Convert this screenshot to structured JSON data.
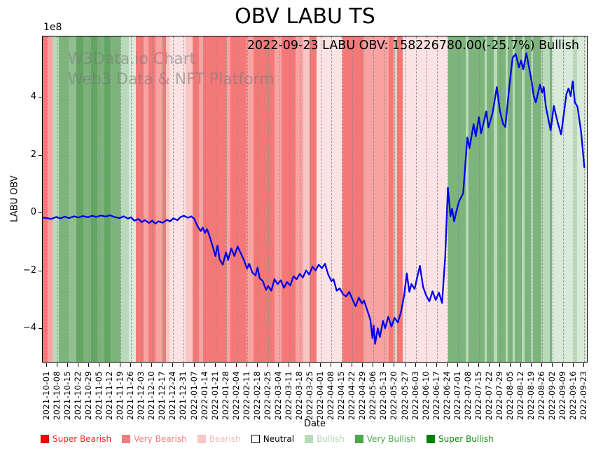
{
  "title": "OBV LABU TS",
  "annotation": "2022-09-23 LABU OBV: 158226780.00(-25.7%) Bullish",
  "watermark": {
    "line1": "W3Data.io Chart",
    "line2": "Web3 Data & NFT Platform"
  },
  "axes": {
    "ylabel": "LABU OBV",
    "xlabel": "Date",
    "offset_text": "1e8"
  },
  "legend": {
    "items": [
      {
        "label": "Super Bearish",
        "swatch": "#ff0000",
        "text_color": "#ff1f1f",
        "border": "#b30000"
      },
      {
        "label": "Very Bearish",
        "swatch": "#f47c7c",
        "text_color": "#f47c7c",
        "border": "#f47c7c"
      },
      {
        "label": "Bearish",
        "swatch": "#fac5c5",
        "text_color": "#f5bcbc",
        "border": "#fac5c5"
      },
      {
        "label": "Neutral",
        "swatch": "#ffffff",
        "text_color": "#000000",
        "border": "#000000"
      },
      {
        "label": "Bullish",
        "swatch": "#b9dab9",
        "text_color": "#b2d6b2",
        "border": "#b9dab9"
      },
      {
        "label": "Very Bullish",
        "swatch": "#4ea64e",
        "text_color": "#4ea64e",
        "border": "#4ea64e"
      },
      {
        "label": "Super Bullish",
        "swatch": "#008000",
        "text_color": "#0e8c0e",
        "border": "#008000"
      }
    ]
  },
  "chart_data": {
    "type": "line",
    "title": "OBV LABU TS",
    "xlabel": "Date",
    "ylabel": "LABU OBV",
    "y_unit": "1e8",
    "ylim": [
      -5.19,
      6.11
    ],
    "yticks": [
      4,
      2,
      0,
      -2,
      -4
    ],
    "ytick_labels": [
      "4",
      "2",
      "0",
      "−2",
      "−4"
    ],
    "grid": "vertical-dotted-weekly",
    "legend_position": "below-figure",
    "x_tick_dates": [
      "2021-10-01",
      "2021-10-08",
      "2021-10-15",
      "2021-10-22",
      "2021-10-29",
      "2021-11-05",
      "2021-11-12",
      "2021-11-19",
      "2021-11-26",
      "2021-12-03",
      "2021-12-10",
      "2021-12-17",
      "2021-12-24",
      "2021-12-31",
      "2022-01-07",
      "2022-01-14",
      "2022-01-21",
      "2022-01-28",
      "2022-02-04",
      "2022-02-11",
      "2022-02-18",
      "2022-02-25",
      "2022-03-04",
      "2022-03-11",
      "2022-03-18",
      "2022-03-25",
      "2022-04-01",
      "2022-04-08",
      "2022-04-15",
      "2022-04-22",
      "2022-04-29",
      "2022-05-06",
      "2022-05-13",
      "2022-05-20",
      "2022-05-27",
      "2022-06-03",
      "2022-06-10",
      "2022-06-17",
      "2022-06-24",
      "2022-07-01",
      "2022-07-08",
      "2022-07-15",
      "2022-07-22",
      "2022-07-29",
      "2022-08-05",
      "2022-08-12",
      "2022-08-19",
      "2022-08-26",
      "2022-09-02",
      "2022-09-09",
      "2022-09-16",
      "2022-09-23"
    ],
    "series": [
      {
        "name": "LABU OBV",
        "color": "#0000ee",
        "last_point": {
          "date": "2022-09-23",
          "value": 158226780.0,
          "change_pct": -25.7,
          "sentiment": "Bullish"
        },
        "points_week_value_1e8": [
          [
            -0.45,
            -0.15
          ],
          [
            0,
            -0.17
          ],
          [
            0.4,
            -0.2
          ],
          [
            0.9,
            -0.13
          ],
          [
            1.3,
            -0.18
          ],
          [
            1.7,
            -0.12
          ],
          [
            2.1,
            -0.17
          ],
          [
            2.6,
            -0.11
          ],
          [
            3,
            -0.15
          ],
          [
            3.4,
            -0.1
          ],
          [
            3.9,
            -0.14
          ],
          [
            4.3,
            -0.09
          ],
          [
            4.7,
            -0.13
          ],
          [
            5.1,
            -0.08
          ],
          [
            5.6,
            -0.12
          ],
          [
            6,
            -0.07
          ],
          [
            6.4,
            -0.13
          ],
          [
            6.9,
            -0.17
          ],
          [
            7.3,
            -0.11
          ],
          [
            7.7,
            -0.19
          ],
          [
            8,
            -0.14
          ],
          [
            8.3,
            -0.26
          ],
          [
            8.7,
            -0.2
          ],
          [
            9,
            -0.31
          ],
          [
            9.3,
            -0.24
          ],
          [
            9.7,
            -0.34
          ],
          [
            10,
            -0.26
          ],
          [
            10.3,
            -0.36
          ],
          [
            10.6,
            -0.28
          ],
          [
            11,
            -0.33
          ],
          [
            11.4,
            -0.23
          ],
          [
            11.7,
            -0.28
          ],
          [
            12,
            -0.18
          ],
          [
            12.4,
            -0.24
          ],
          [
            12.7,
            -0.13
          ],
          [
            13,
            -0.09
          ],
          [
            13.4,
            -0.16
          ],
          [
            13.7,
            -0.11
          ],
          [
            14,
            -0.2
          ],
          [
            14.3,
            -0.45
          ],
          [
            14.6,
            -0.62
          ],
          [
            14.8,
            -0.5
          ],
          [
            15,
            -0.68
          ],
          [
            15.2,
            -0.55
          ],
          [
            15.4,
            -0.75
          ],
          [
            15.7,
            -1.1
          ],
          [
            16,
            -1.48
          ],
          [
            16.2,
            -1.12
          ],
          [
            16.4,
            -1.6
          ],
          [
            16.7,
            -1.78
          ],
          [
            17,
            -1.35
          ],
          [
            17.2,
            -1.62
          ],
          [
            17.5,
            -1.22
          ],
          [
            17.8,
            -1.48
          ],
          [
            18.1,
            -1.15
          ],
          [
            18.4,
            -1.38
          ],
          [
            18.7,
            -1.62
          ],
          [
            19,
            -1.92
          ],
          [
            19.2,
            -1.75
          ],
          [
            19.5,
            -2.05
          ],
          [
            19.8,
            -2.15
          ],
          [
            20,
            -1.88
          ],
          [
            20.2,
            -2.25
          ],
          [
            20.5,
            -2.35
          ],
          [
            20.8,
            -2.65
          ],
          [
            21,
            -2.52
          ],
          [
            21.3,
            -2.68
          ],
          [
            21.6,
            -2.28
          ],
          [
            21.9,
            -2.45
          ],
          [
            22.2,
            -2.32
          ],
          [
            22.5,
            -2.58
          ],
          [
            22.8,
            -2.38
          ],
          [
            23.1,
            -2.5
          ],
          [
            23.4,
            -2.18
          ],
          [
            23.7,
            -2.28
          ],
          [
            24,
            -2.1
          ],
          [
            24.3,
            -2.22
          ],
          [
            24.6,
            -1.98
          ],
          [
            24.9,
            -2.12
          ],
          [
            25.2,
            -1.85
          ],
          [
            25.5,
            -1.98
          ],
          [
            25.8,
            -1.78
          ],
          [
            26.1,
            -1.9
          ],
          [
            26.4,
            -1.75
          ],
          [
            26.7,
            -2.12
          ],
          [
            27,
            -2.35
          ],
          [
            27.2,
            -2.28
          ],
          [
            27.5,
            -2.68
          ],
          [
            27.8,
            -2.6
          ],
          [
            28.1,
            -2.8
          ],
          [
            28.4,
            -2.88
          ],
          [
            28.7,
            -2.72
          ],
          [
            29,
            -2.98
          ],
          [
            29.3,
            -3.22
          ],
          [
            29.6,
            -2.92
          ],
          [
            29.9,
            -3.12
          ],
          [
            30.1,
            -3.02
          ],
          [
            30.4,
            -3.35
          ],
          [
            30.7,
            -3.68
          ],
          [
            30.9,
            -4.32
          ],
          [
            31,
            -3.88
          ],
          [
            31.15,
            -4.52
          ],
          [
            31.4,
            -3.98
          ],
          [
            31.6,
            -4.28
          ],
          [
            31.9,
            -3.72
          ],
          [
            32.1,
            -3.98
          ],
          [
            32.4,
            -3.58
          ],
          [
            32.7,
            -3.92
          ],
          [
            33,
            -3.62
          ],
          [
            33.3,
            -3.78
          ],
          [
            33.6,
            -3.42
          ],
          [
            33.9,
            -2.85
          ],
          [
            34.15,
            -2.08
          ],
          [
            34.4,
            -2.72
          ],
          [
            34.6,
            -2.45
          ],
          [
            34.9,
            -2.62
          ],
          [
            35.1,
            -2.28
          ],
          [
            35.4,
            -1.82
          ],
          [
            35.7,
            -2.55
          ],
          [
            36,
            -2.85
          ],
          [
            36.3,
            -3.05
          ],
          [
            36.6,
            -2.7
          ],
          [
            36.9,
            -3.0
          ],
          [
            37.2,
            -2.75
          ],
          [
            37.5,
            -3.1
          ],
          [
            37.8,
            -1.5
          ],
          [
            38.05,
            0.88
          ],
          [
            38.3,
            -0.1
          ],
          [
            38.45,
            0.15
          ],
          [
            38.65,
            -0.28
          ],
          [
            38.85,
            0.05
          ],
          [
            39.1,
            0.4
          ],
          [
            39.5,
            0.68
          ],
          [
            39.9,
            2.62
          ],
          [
            40.1,
            2.25
          ],
          [
            40.5,
            3.08
          ],
          [
            40.7,
            2.66
          ],
          [
            41,
            3.32
          ],
          [
            41.2,
            2.76
          ],
          [
            41.7,
            3.52
          ],
          [
            41.9,
            2.96
          ],
          [
            42.3,
            3.47
          ],
          [
            42.7,
            4.36
          ],
          [
            43,
            3.52
          ],
          [
            43.3,
            3.08
          ],
          [
            43.5,
            2.98
          ],
          [
            43.9,
            4.44
          ],
          [
            44.2,
            5.38
          ],
          [
            44.5,
            5.5
          ],
          [
            44.8,
            5.04
          ],
          [
            45,
            5.28
          ],
          [
            45.2,
            4.97
          ],
          [
            45.5,
            5.53
          ],
          [
            46,
            4.56
          ],
          [
            46.2,
            4.05
          ],
          [
            46.4,
            3.83
          ],
          [
            46.8,
            4.44
          ],
          [
            47,
            4.17
          ],
          [
            47.15,
            4.36
          ],
          [
            47.35,
            3.68
          ],
          [
            47.55,
            3.32
          ],
          [
            47.8,
            2.86
          ],
          [
            48.1,
            3.71
          ],
          [
            48.5,
            3.1
          ],
          [
            48.8,
            2.72
          ],
          [
            49.3,
            4.12
          ],
          [
            49.5,
            4.31
          ],
          [
            49.7,
            4.05
          ],
          [
            49.9,
            4.56
          ],
          [
            50.1,
            3.83
          ],
          [
            50.35,
            3.68
          ],
          [
            50.7,
            2.79
          ],
          [
            51,
            1.58
          ]
        ]
      }
    ],
    "band_colors": {
      "strong_red": "#f57878",
      "red": "#f9a2a2",
      "pink": "#fac5c5",
      "pale_pink": "#fce3e3",
      "pale_green": "#d9ead9",
      "light_green": "#b9dab9",
      "green": "#8fc18f",
      "medium_green": "#7cb47c",
      "dark_green": "#63a563"
    },
    "sentiment_bands_weeks": [
      {
        "f": -0.45,
        "t": 0,
        "c": "strong_red"
      },
      {
        "f": 0,
        "t": 0.55,
        "c": "red"
      },
      {
        "f": 0.55,
        "t": 1.15,
        "c": "light_green"
      },
      {
        "f": 1.15,
        "t": 2.0,
        "c": "medium_green"
      },
      {
        "f": 2.0,
        "t": 2.8,
        "c": "green"
      },
      {
        "f": 2.8,
        "t": 3.5,
        "c": "dark_green"
      },
      {
        "f": 3.5,
        "t": 4.2,
        "c": "medium_green"
      },
      {
        "f": 4.2,
        "t": 4.8,
        "c": "dark_green"
      },
      {
        "f": 4.8,
        "t": 5.45,
        "c": "medium_green"
      },
      {
        "f": 5.45,
        "t": 6.0,
        "c": "dark_green"
      },
      {
        "f": 6.0,
        "t": 7.0,
        "c": "medium_green"
      },
      {
        "f": 7.0,
        "t": 7.8,
        "c": "light_green"
      },
      {
        "f": 7.8,
        "t": 8.45,
        "c": "pale_green"
      },
      {
        "f": 8.45,
        "t": 9.2,
        "c": "strong_red"
      },
      {
        "f": 9.2,
        "t": 9.65,
        "c": "red"
      },
      {
        "f": 9.65,
        "t": 10.3,
        "c": "strong_red"
      },
      {
        "f": 10.3,
        "t": 11.0,
        "c": "red"
      },
      {
        "f": 11.0,
        "t": 11.3,
        "c": "strong_red"
      },
      {
        "f": 11.3,
        "t": 11.65,
        "c": "pink"
      },
      {
        "f": 11.65,
        "t": 13.2,
        "c": "pale_pink"
      },
      {
        "f": 13.2,
        "t": 13.85,
        "c": "pink"
      },
      {
        "f": 13.85,
        "t": 14.45,
        "c": "strong_red"
      },
      {
        "f": 14.45,
        "t": 14.8,
        "c": "red"
      },
      {
        "f": 14.8,
        "t": 17.0,
        "c": "strong_red"
      },
      {
        "f": 17.0,
        "t": 17.4,
        "c": "red"
      },
      {
        "f": 17.4,
        "t": 18.95,
        "c": "strong_red"
      },
      {
        "f": 18.95,
        "t": 19.6,
        "c": "red"
      },
      {
        "f": 19.6,
        "t": 21.6,
        "c": "strong_red"
      },
      {
        "f": 21.6,
        "t": 22.3,
        "c": "red"
      },
      {
        "f": 22.3,
        "t": 23.6,
        "c": "strong_red"
      },
      {
        "f": 23.6,
        "t": 24.3,
        "c": "red"
      },
      {
        "f": 24.3,
        "t": 24.95,
        "c": "pink"
      },
      {
        "f": 24.95,
        "t": 25.6,
        "c": "strong_red"
      },
      {
        "f": 25.6,
        "t": 28.05,
        "c": "pale_pink"
      },
      {
        "f": 28.05,
        "t": 30.05,
        "c": "strong_red"
      },
      {
        "f": 30.05,
        "t": 30.4,
        "c": "red"
      },
      {
        "f": 30.4,
        "t": 32.45,
        "c": "red"
      },
      {
        "f": 32.45,
        "t": 32.9,
        "c": "strong_red"
      },
      {
        "f": 32.9,
        "t": 33.25,
        "c": "pink"
      },
      {
        "f": 33.25,
        "t": 33.8,
        "c": "strong_red"
      },
      {
        "f": 33.8,
        "t": 38.1,
        "c": "pale_pink"
      },
      {
        "f": 38.1,
        "t": 39.75,
        "c": "medium_green"
      },
      {
        "f": 39.75,
        "t": 40.0,
        "c": "light_green"
      },
      {
        "f": 40.0,
        "t": 41.55,
        "c": "medium_green"
      },
      {
        "f": 41.55,
        "t": 41.75,
        "c": "light_green"
      },
      {
        "f": 41.75,
        "t": 42.4,
        "c": "medium_green"
      },
      {
        "f": 42.4,
        "t": 42.75,
        "c": "light_green"
      },
      {
        "f": 42.75,
        "t": 43.55,
        "c": "medium_green"
      },
      {
        "f": 43.55,
        "t": 43.75,
        "c": "light_green"
      },
      {
        "f": 43.75,
        "t": 44.2,
        "c": "medium_green"
      },
      {
        "f": 44.2,
        "t": 44.4,
        "c": "light_green"
      },
      {
        "f": 44.4,
        "t": 45.05,
        "c": "medium_green"
      },
      {
        "f": 45.05,
        "t": 45.3,
        "c": "light_green"
      },
      {
        "f": 45.3,
        "t": 45.95,
        "c": "medium_green"
      },
      {
        "f": 45.95,
        "t": 46.15,
        "c": "light_green"
      },
      {
        "f": 46.15,
        "t": 46.95,
        "c": "medium_green"
      },
      {
        "f": 46.95,
        "t": 47.7,
        "c": "light_green"
      },
      {
        "f": 47.7,
        "t": 47.95,
        "c": "medium_green"
      },
      {
        "f": 47.95,
        "t": 49.95,
        "c": "pale_green"
      },
      {
        "f": 49.95,
        "t": 50.3,
        "c": "light_green"
      },
      {
        "f": 50.3,
        "t": 51.4,
        "c": "pale_green"
      }
    ]
  }
}
